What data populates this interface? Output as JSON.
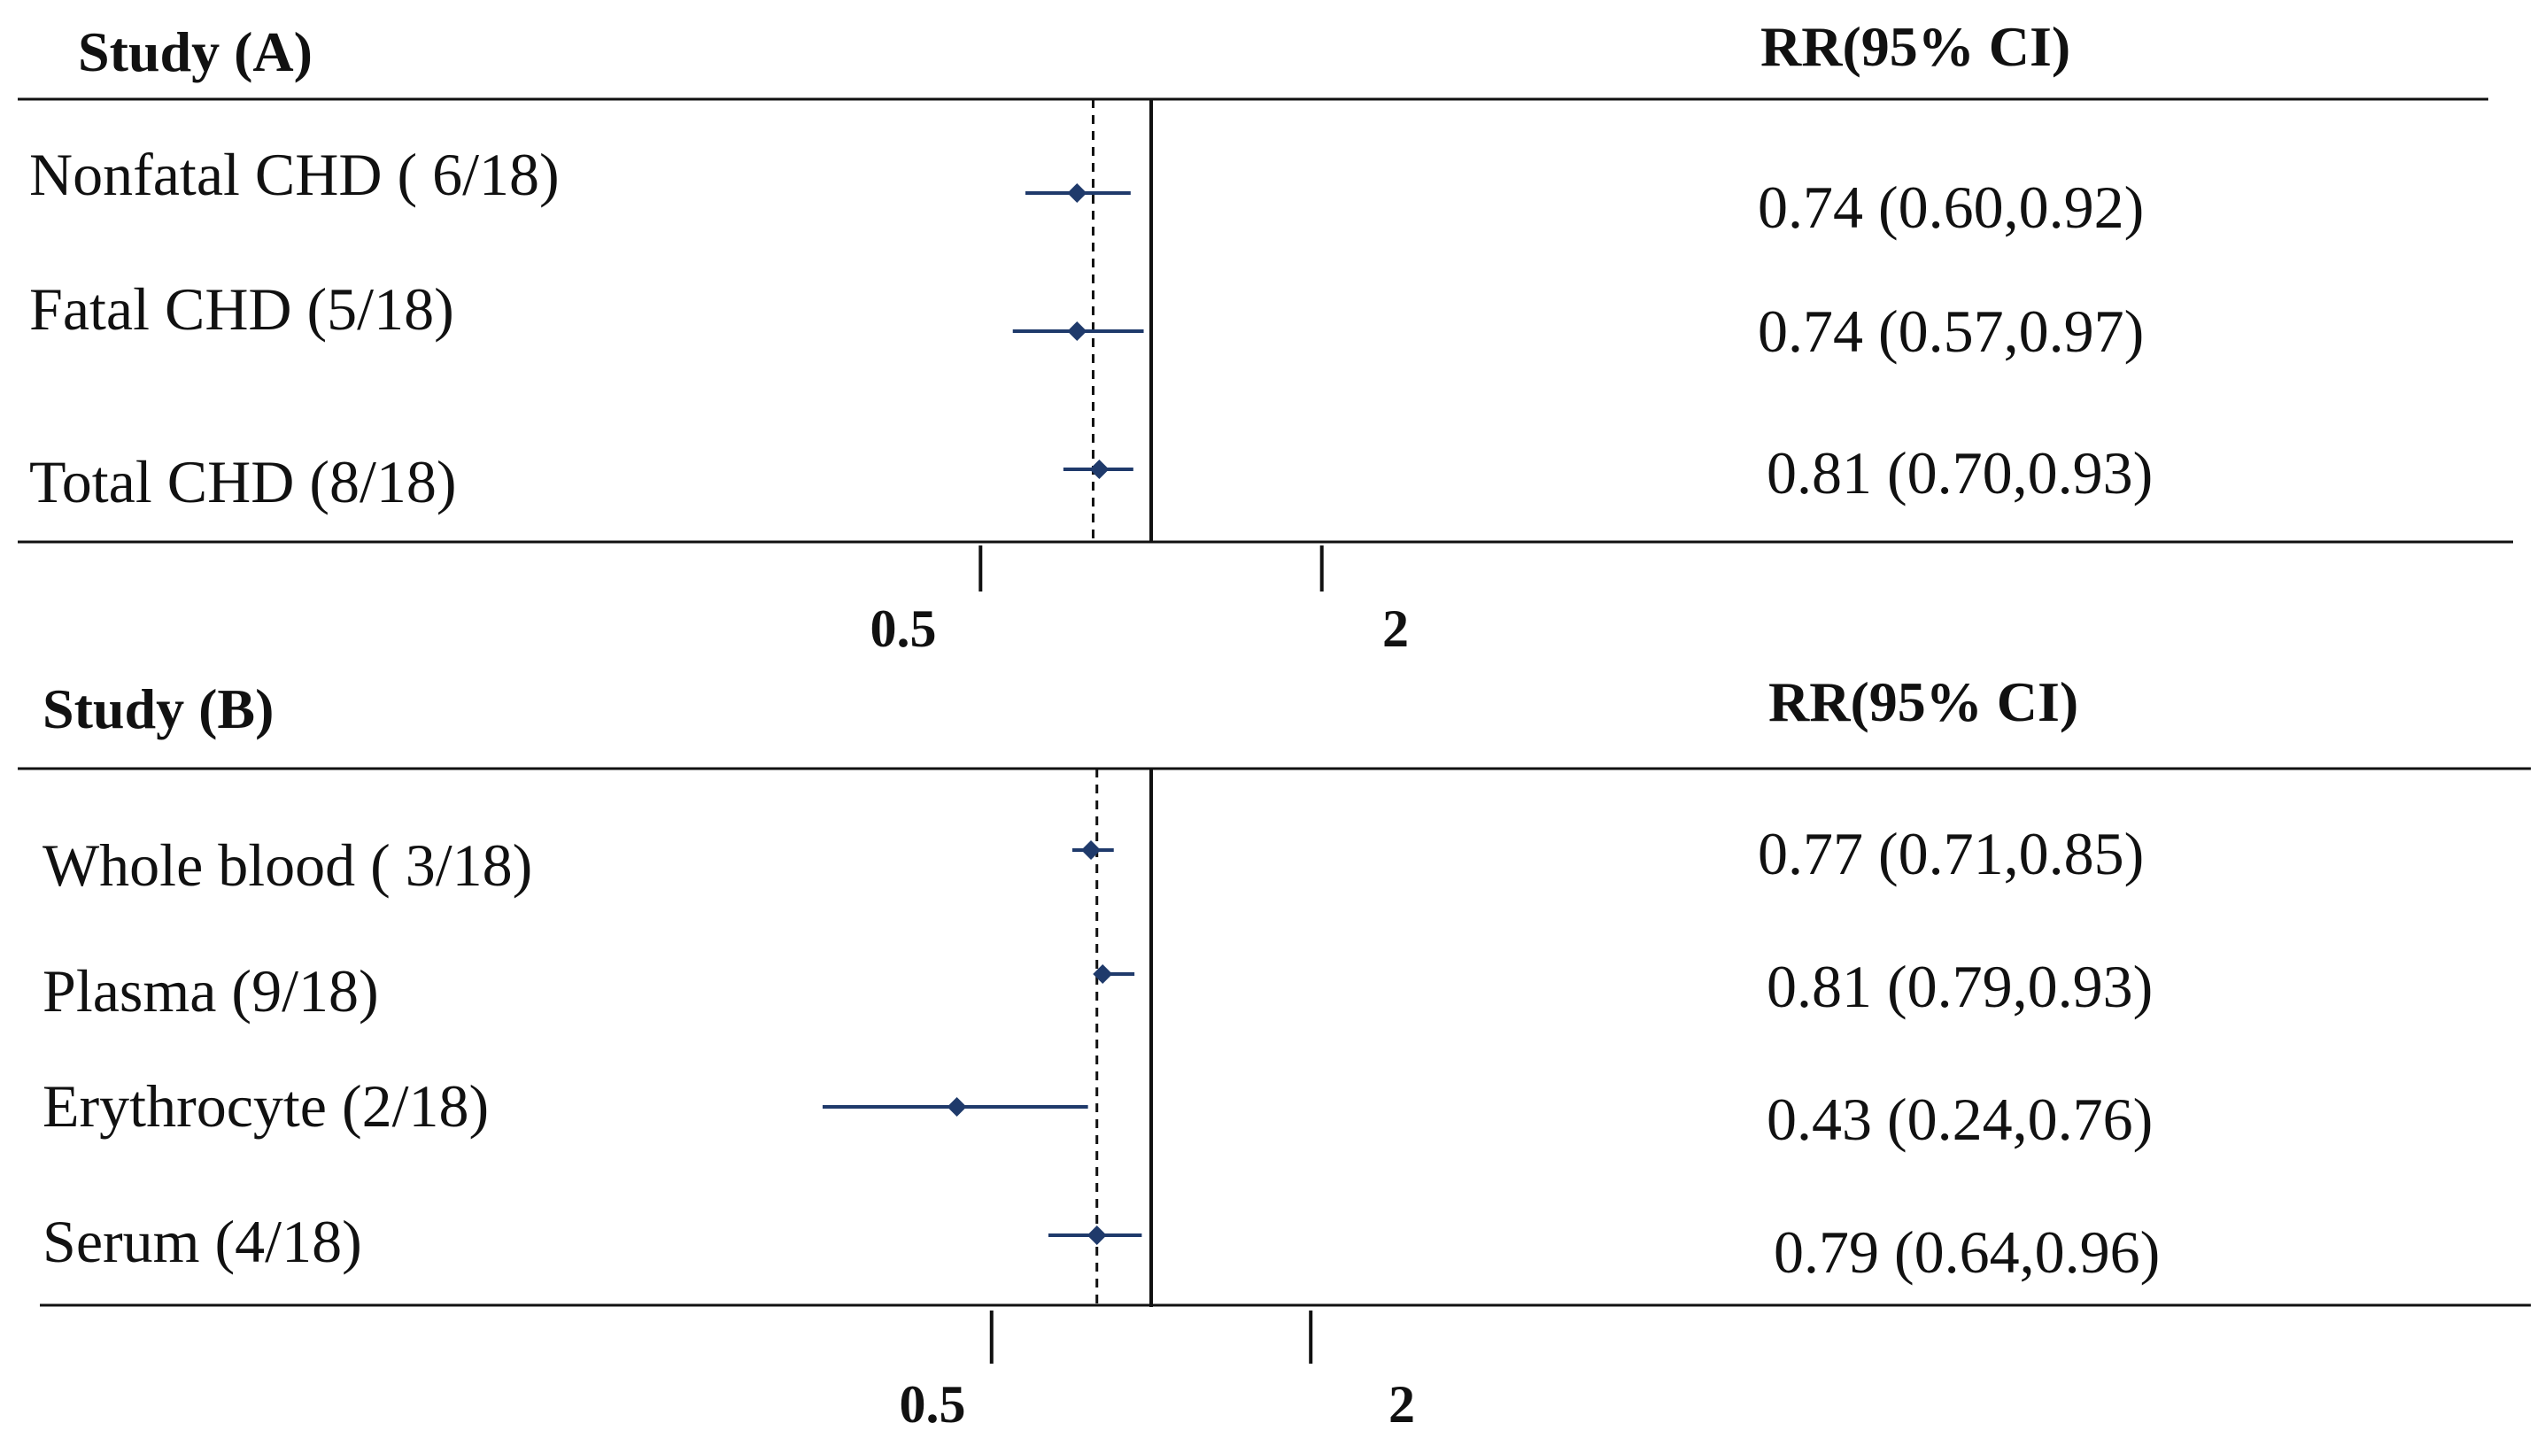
{
  "chart_data": [
    {
      "type": "forest",
      "header_left": "Study (A)",
      "header_right": "RR(95% CI)",
      "x_ticks": [
        "0.5",
        "2"
      ],
      "x_tick_values": [
        0.5,
        2
      ],
      "xlim": [
        0.25,
        4
      ],
      "reference_line": 1,
      "pooled_estimate_line": 0.79,
      "rows": [
        {
          "label": "Nonfatal CHD ( 6/18)",
          "rr": 0.74,
          "lower": 0.6,
          "upper": 0.92,
          "text": "0.74 (0.60,0.92)"
        },
        {
          "label": "Fatal CHD (5/18)",
          "rr": 0.74,
          "lower": 0.57,
          "upper": 0.97,
          "text": "0.74 (0.57,0.97)"
        },
        {
          "label": "Total CHD (8/18)",
          "rr": 0.81,
          "lower": 0.7,
          "upper": 0.93,
          "text": "0.81 (0.70,0.93)"
        }
      ]
    },
    {
      "type": "forest",
      "header_left": "Study (B)",
      "header_right": "RR(95% CI)",
      "x_ticks": [
        "0.5",
        "2"
      ],
      "x_tick_values": [
        0.5,
        2
      ],
      "xlim": [
        0.25,
        4
      ],
      "reference_line": 1,
      "pooled_estimate_line": 0.79,
      "rows": [
        {
          "label": "Whole blood ( 3/18)",
          "rr": 0.77,
          "lower": 0.71,
          "upper": 0.85,
          "text": "0.77 (0.71,0.85)"
        },
        {
          "label": "Plasma (9/18)",
          "rr": 0.81,
          "lower": 0.79,
          "upper": 0.93,
          "text": "0.81 (0.79,0.93)"
        },
        {
          "label": "Erythrocyte  (2/18)",
          "rr": 0.43,
          "lower": 0.24,
          "upper": 0.76,
          "text": "0.43 (0.24,0.76)"
        },
        {
          "label": "Serum (4/18)",
          "rr": 0.79,
          "lower": 0.64,
          "upper": 0.96,
          "text": "0.79 (0.64,0.96)"
        }
      ]
    }
  ],
  "colors": {
    "marker": "#1f3a6b",
    "axis": "#111111"
  }
}
